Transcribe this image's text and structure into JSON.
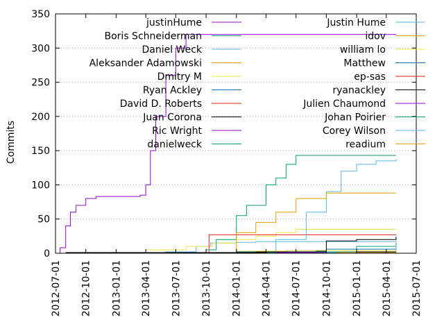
{
  "chart_data": {
    "type": "line",
    "title": "",
    "xlabel": "",
    "ylabel": "Commits",
    "xlim": [
      "2012-07-01",
      "2015-07-01"
    ],
    "ylim": [
      0,
      350
    ],
    "y_ticks": [
      0,
      50,
      100,
      150,
      200,
      250,
      300,
      350
    ],
    "x_ticks": [
      "2012-07-01",
      "2012-10-01",
      "2013-01-01",
      "2013-04-01",
      "2013-07-01",
      "2013-10-01",
      "2014-01-01",
      "2014-04-01",
      "2014-07-01",
      "2014-10-01",
      "2015-01-01",
      "2015-04-01",
      "2015-07-01"
    ],
    "grid": "horizontal dotted",
    "legend_placement": "top, two columns",
    "series": [
      {
        "name": "justinHume",
        "color": "#9400d3",
        "x": [
          "2012-07-01",
          "2013-05-15"
        ],
        "y": [
          0,
          0
        ]
      },
      {
        "name": "Boris Schneiderman",
        "color": "#009e73",
        "x": [
          "2012-08-01",
          "2013-06-01"
        ],
        "y": [
          0,
          0
        ]
      },
      {
        "name": "Daniel Weck",
        "color": "#56b4e9",
        "x": [
          "2012-11-01",
          "2013-06-01",
          "2013-09-01",
          "2013-10-15",
          "2014-01-01",
          "2014-03-01",
          "2014-05-20",
          "2015-05-01"
        ],
        "y": [
          1,
          2,
          10,
          15,
          16,
          17,
          17,
          18
        ]
      },
      {
        "name": "Aleksander Adamowski",
        "color": "#e69f00",
        "x": [
          "2013-09-01",
          "2013-10-20",
          "2014-01-01",
          "2015-05-01"
        ],
        "y": [
          0,
          1,
          1,
          1
        ]
      },
      {
        "name": "Dmitry M",
        "color": "#f0e442",
        "x": [
          "2013-04-01",
          "2013-08-01",
          "2013-10-20",
          "2014-01-01",
          "2014-03-01",
          "2014-05-01",
          "2014-07-01",
          "2015-05-01"
        ],
        "y": [
          5,
          10,
          15,
          20,
          25,
          30,
          35,
          35
        ]
      },
      {
        "name": "Ryan Ackley",
        "color": "#0072b2",
        "x": [
          "2014-01-01",
          "2014-06-01",
          "2014-10-01",
          "2015-05-01"
        ],
        "y": [
          2,
          4,
          6,
          8
        ]
      },
      {
        "name": "David D. Roberts",
        "color": "#e51e10",
        "x": [
          "2013-10-01",
          "2013-10-10",
          "2014-10-01",
          "2015-05-01"
        ],
        "y": [
          0,
          27,
          27,
          27
        ]
      },
      {
        "name": "Juan Corona",
        "color": "#000000",
        "x": [
          "2012-08-01",
          "2014-06-01",
          "2014-09-01",
          "2014-10-01",
          "2015-01-01",
          "2015-05-01"
        ],
        "y": [
          1,
          1,
          3,
          18,
          20,
          24
        ]
      },
      {
        "name": "Ric Wright",
        "color": "#9400d3",
        "x": [
          "2012-07-01",
          "2012-07-15",
          "2012-08-01",
          "2012-08-15",
          "2012-09-01",
          "2012-10-01",
          "2012-11-01",
          "2013-03-15",
          "2013-04-01",
          "2013-04-15",
          "2013-05-01",
          "2013-06-01",
          "2013-07-01",
          "2013-08-01",
          "2015-05-01"
        ],
        "y": [
          0,
          8,
          40,
          60,
          70,
          80,
          83,
          85,
          100,
          150,
          200,
          260,
          300,
          320,
          320
        ]
      },
      {
        "name": "danielweck",
        "color": "#009e73",
        "x": [
          "2013-10-01",
          "2013-11-01",
          "2014-01-01",
          "2014-02-01",
          "2014-04-01",
          "2014-05-01",
          "2014-06-01",
          "2014-07-01",
          "2015-05-01"
        ],
        "y": [
          5,
          20,
          55,
          70,
          100,
          110,
          130,
          143,
          143
        ]
      },
      {
        "name": "Justin Hume",
        "color": "#56b4e9",
        "x": [
          "2014-02-01",
          "2014-05-01",
          "2014-08-01",
          "2014-10-01",
          "2014-11-15",
          "2015-01-01",
          "2015-03-01",
          "2015-05-01"
        ],
        "y": [
          0,
          20,
          60,
          90,
          120,
          130,
          135,
          138
        ]
      },
      {
        "name": "idov",
        "color": "#e69f00",
        "x": [
          "2013-12-01",
          "2014-01-01",
          "2014-03-01",
          "2014-05-01",
          "2014-07-01",
          "2014-10-01",
          "2015-01-01",
          "2015-05-01"
        ],
        "y": [
          0,
          30,
          45,
          60,
          80,
          88,
          88,
          88
        ]
      },
      {
        "name": "william lo",
        "color": "#f0e442",
        "x": [
          "2014-01-01",
          "2014-06-01",
          "2015-05-01"
        ],
        "y": [
          3,
          4,
          5
        ]
      },
      {
        "name": "Matthew",
        "color": "#0072b2",
        "x": [
          "2014-04-01",
          "2014-12-01",
          "2015-05-01"
        ],
        "y": [
          1,
          2,
          3
        ]
      },
      {
        "name": "ep-sas",
        "color": "#e51e10",
        "x": [
          "2014-08-01",
          "2015-05-01"
        ],
        "y": [
          1,
          2
        ]
      },
      {
        "name": "ryanackley",
        "color": "#000000",
        "x": [
          "2014-03-01",
          "2015-05-01"
        ],
        "y": [
          2,
          3
        ]
      },
      {
        "name": "Julien Chaumond",
        "color": "#9400d3",
        "x": [
          "2014-05-01",
          "2015-05-01"
        ],
        "y": [
          1,
          1
        ]
      },
      {
        "name": "Johan Poirier",
        "color": "#009e73",
        "x": [
          "2014-09-01",
          "2015-01-01",
          "2015-05-01"
        ],
        "y": [
          2,
          10,
          15
        ]
      },
      {
        "name": "Corey Wilson",
        "color": "#56b4e9",
        "x": [
          "2014-10-01",
          "2015-05-01"
        ],
        "y": [
          1,
          12
        ]
      },
      {
        "name": "readium",
        "color": "#e69f00",
        "x": [
          "2014-11-01",
          "2015-05-01"
        ],
        "y": [
          1,
          3
        ]
      }
    ]
  }
}
